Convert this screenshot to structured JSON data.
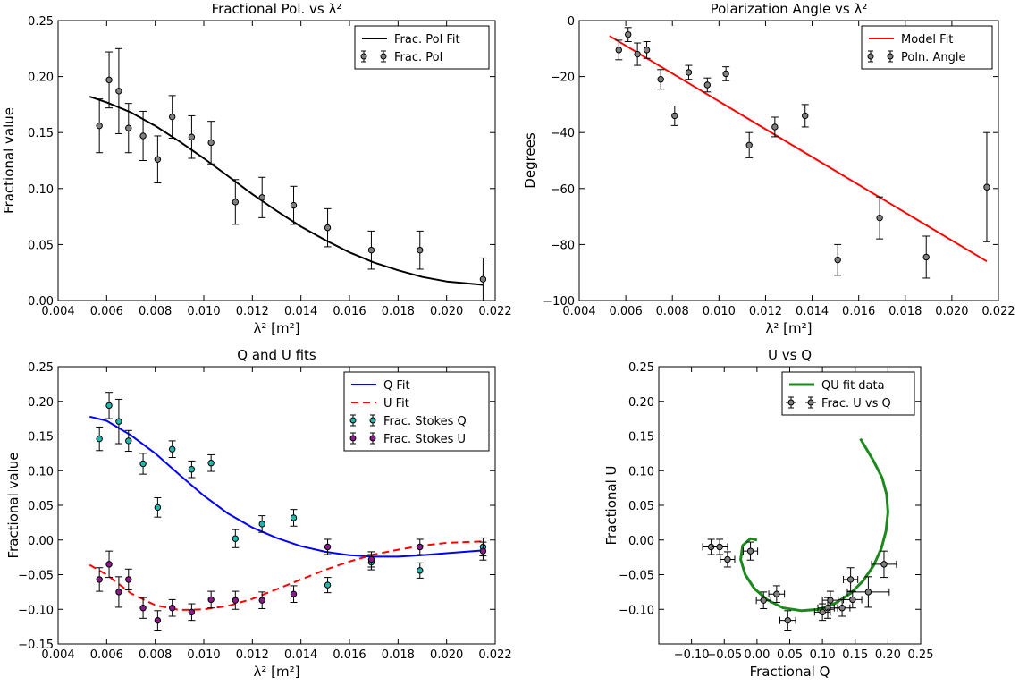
{
  "figure": {
    "panels": [
      {
        "title": "Fractional Pol. vs λ²",
        "xlabel": "λ² [m²]",
        "ylabel": "Fractional value",
        "legend_items": [
          "Frac. Pol Fit",
          "Frac. Pol"
        ]
      },
      {
        "title": "Polarization Angle vs λ²",
        "xlabel": "λ² [m²]",
        "ylabel": "Degrees",
        "legend_items": [
          "Model Fit",
          "Poln. Angle"
        ]
      },
      {
        "title": "Q and U fits",
        "xlabel": "λ² [m²]",
        "ylabel": "Fractional value",
        "legend_items": [
          "Q Fit",
          "U Fit",
          "Frac. Stokes Q",
          "Frac. Stokes U"
        ]
      },
      {
        "title": "U vs Q",
        "xlabel": "Fractional Q",
        "ylabel": "Fractional U",
        "legend_items": [
          "QU fit data",
          "Frac. U vs Q"
        ]
      }
    ]
  },
  "colors": {
    "frac_pol_fit": "#000000",
    "model_fit": "#ff0000",
    "q_fit": "#0000ff",
    "u_fit": "#ff0000",
    "stokes_q_marker": "#1fb8b0",
    "stokes_u_marker": "#8b1a8b",
    "data_marker": "#808080",
    "qu_fit": "#1a8a1a"
  },
  "chart_data": [
    {
      "type": "scatter",
      "title": "Fractional Pol. vs λ²",
      "xlabel": "λ² [m²]",
      "ylabel": "Fractional value",
      "xlim": [
        0.004,
        0.022
      ],
      "ylim": [
        0.0,
        0.25
      ],
      "xticks": [
        "0.004",
        "0.006",
        "0.008",
        "0.010",
        "0.012",
        "0.014",
        "0.016",
        "0.018",
        "0.020",
        "0.022"
      ],
      "yticks": [
        "0.00",
        "0.05",
        "0.10",
        "0.15",
        "0.20",
        "0.25"
      ],
      "legend": "top-right",
      "series": [
        {
          "name": "Frac. Pol Fit",
          "kind": "line",
          "x": [
            0.0053,
            0.006,
            0.007,
            0.008,
            0.009,
            0.01,
            0.011,
            0.012,
            0.013,
            0.014,
            0.015,
            0.016,
            0.017,
            0.018,
            0.019,
            0.02,
            0.0215
          ],
          "y": [
            0.182,
            0.177,
            0.168,
            0.156,
            0.142,
            0.127,
            0.111,
            0.095,
            0.08,
            0.066,
            0.054,
            0.043,
            0.034,
            0.027,
            0.021,
            0.017,
            0.014
          ]
        },
        {
          "name": "Frac. Pol",
          "kind": "errorbar",
          "x": [
            0.0057,
            0.0061,
            0.0065,
            0.0069,
            0.0075,
            0.0081,
            0.0087,
            0.0095,
            0.0103,
            0.0113,
            0.0124,
            0.0137,
            0.0151,
            0.0169,
            0.0189,
            0.0215
          ],
          "y": [
            0.156,
            0.197,
            0.187,
            0.154,
            0.147,
            0.126,
            0.164,
            0.146,
            0.141,
            0.088,
            0.092,
            0.085,
            0.065,
            0.045,
            0.045,
            0.019
          ],
          "yerr": [
            0.024,
            0.025,
            0.038,
            0.022,
            0.022,
            0.021,
            0.019,
            0.019,
            0.019,
            0.02,
            0.018,
            0.017,
            0.017,
            0.017,
            0.017,
            0.019
          ]
        }
      ]
    },
    {
      "type": "scatter",
      "title": "Polarization Angle vs λ²",
      "xlabel": "λ² [m²]",
      "ylabel": "Degrees",
      "xlim": [
        0.004,
        0.022
      ],
      "ylim": [
        -100,
        0
      ],
      "xticks": [
        "0.004",
        "0.006",
        "0.008",
        "0.010",
        "0.012",
        "0.014",
        "0.016",
        "0.018",
        "0.020",
        "0.022"
      ],
      "yticks": [
        "−100",
        "−80",
        "−60",
        "−40",
        "−20",
        "0"
      ],
      "legend": "top-right",
      "series": [
        {
          "name": "Model Fit",
          "kind": "line",
          "x": [
            0.0053,
            0.0215
          ],
          "y": [
            -5.5,
            -86
          ]
        },
        {
          "name": "Poln. Angle",
          "kind": "errorbar",
          "x": [
            0.0057,
            0.0061,
            0.0065,
            0.0069,
            0.0075,
            0.0081,
            0.0087,
            0.0095,
            0.0103,
            0.0113,
            0.0124,
            0.0137,
            0.0151,
            0.0169,
            0.0189,
            0.0215
          ],
          "y": [
            -10.5,
            -5,
            -12,
            -10.5,
            -21,
            -34,
            -18.5,
            -23,
            -19,
            -44.5,
            -38,
            -34,
            -85.5,
            -70.5,
            -84.5,
            -59.5
          ],
          "yerr": [
            3.5,
            2.5,
            4,
            3,
            3.5,
            3.5,
            2.5,
            2.5,
            2.5,
            4.5,
            3.5,
            4,
            5.5,
            7.5,
            7.5,
            19.5
          ]
        }
      ]
    },
    {
      "type": "scatter",
      "title": "Q and U fits",
      "xlabel": "λ² [m²]",
      "ylabel": "Fractional value",
      "xlim": [
        0.004,
        0.022
      ],
      "ylim": [
        -0.15,
        0.25
      ],
      "xticks": [
        "0.004",
        "0.006",
        "0.008",
        "0.010",
        "0.012",
        "0.014",
        "0.016",
        "0.018",
        "0.020",
        "0.022"
      ],
      "yticks": [
        "−0.15",
        "−0.10",
        "−0.05",
        "0.00",
        "0.05",
        "0.10",
        "0.15",
        "0.20",
        "0.25"
      ],
      "legend": "top-right",
      "series": [
        {
          "name": "Q Fit",
          "kind": "line",
          "x": [
            0.0053,
            0.006,
            0.007,
            0.008,
            0.009,
            0.01,
            0.011,
            0.012,
            0.013,
            0.014,
            0.015,
            0.016,
            0.017,
            0.018,
            0.019,
            0.02,
            0.0215
          ],
          "y": [
            0.178,
            0.172,
            0.151,
            0.125,
            0.094,
            0.064,
            0.038,
            0.018,
            0.003,
            -0.009,
            -0.017,
            -0.022,
            -0.024,
            -0.024,
            -0.022,
            -0.019,
            -0.015
          ]
        },
        {
          "name": "U Fit",
          "kind": "dashed-line",
          "x": [
            0.0053,
            0.006,
            0.007,
            0.008,
            0.009,
            0.01,
            0.011,
            0.012,
            0.013,
            0.014,
            0.015,
            0.016,
            0.017,
            0.018,
            0.019,
            0.02,
            0.0215
          ],
          "y": [
            -0.036,
            -0.05,
            -0.077,
            -0.094,
            -0.101,
            -0.1,
            -0.095,
            -0.085,
            -0.071,
            -0.057,
            -0.043,
            -0.031,
            -0.021,
            -0.014,
            -0.008,
            -0.004,
            -0.002
          ]
        },
        {
          "name": "Frac. Stokes Q",
          "kind": "errorbar",
          "x": [
            0.0057,
            0.0061,
            0.0065,
            0.0069,
            0.0075,
            0.0081,
            0.0087,
            0.0095,
            0.0103,
            0.0113,
            0.0124,
            0.0137,
            0.0151,
            0.0169,
            0.0189,
            0.0215
          ],
          "y": [
            0.146,
            0.194,
            0.171,
            0.143,
            0.11,
            0.047,
            0.131,
            0.102,
            0.111,
            0.002,
            0.023,
            0.032,
            -0.065,
            -0.032,
            -0.044,
            -0.01
          ],
          "yerr": [
            0.017,
            0.019,
            0.032,
            0.015,
            0.015,
            0.014,
            0.012,
            0.012,
            0.012,
            0.013,
            0.012,
            0.012,
            0.011,
            0.011,
            0.011,
            0.013
          ]
        },
        {
          "name": "Frac. Stokes U",
          "kind": "errorbar",
          "x": [
            0.0057,
            0.0061,
            0.0065,
            0.0069,
            0.0075,
            0.0081,
            0.0087,
            0.0095,
            0.0103,
            0.0113,
            0.0124,
            0.0137,
            0.0151,
            0.0169,
            0.0189,
            0.0215
          ],
          "y": [
            -0.057,
            -0.035,
            -0.075,
            -0.057,
            -0.098,
            -0.116,
            -0.098,
            -0.104,
            -0.086,
            -0.087,
            -0.087,
            -0.078,
            -0.01,
            -0.028,
            -0.01,
            -0.016
          ],
          "yerr": [
            0.017,
            0.019,
            0.022,
            0.015,
            0.015,
            0.014,
            0.012,
            0.012,
            0.012,
            0.013,
            0.012,
            0.012,
            0.011,
            0.011,
            0.011,
            0.013
          ]
        }
      ]
    },
    {
      "type": "scatter",
      "title": "U vs Q",
      "xlabel": "Fractional Q",
      "ylabel": "Fractional U",
      "xlim": [
        -0.15,
        0.25
      ],
      "ylim": [
        -0.15,
        0.25
      ],
      "xticks": [
        "−0.10",
        "−0.05",
        "0.00",
        "0.05",
        "0.10",
        "0.15",
        "0.20",
        "0.25"
      ],
      "yticks": [
        "−0.10",
        "−0.05",
        "0.00",
        "0.05",
        "0.10",
        "0.15",
        "0.20",
        "0.25"
      ],
      "xtick_values": [
        -0.1,
        -0.05,
        0.0,
        0.05,
        0.1,
        0.15,
        0.2,
        0.25
      ],
      "ytick_values": [
        -0.1,
        -0.05,
        0.0,
        0.05,
        0.1,
        0.15,
        0.2,
        0.25
      ],
      "legend": "top-right",
      "series": [
        {
          "name": "QU fit data",
          "kind": "line",
          "x": [
            0.0,
            -0.01,
            -0.022,
            -0.025,
            -0.018,
            -0.004,
            0.015,
            0.04,
            0.068,
            0.095,
            0.12,
            0.143,
            0.162,
            0.178,
            0.19,
            0.197,
            0.2,
            0.198,
            0.191,
            0.178,
            0.158
          ],
          "y": [
            0.0,
            0.002,
            -0.008,
            -0.028,
            -0.05,
            -0.07,
            -0.086,
            -0.098,
            -0.102,
            -0.1,
            -0.091,
            -0.077,
            -0.059,
            -0.037,
            -0.012,
            0.013,
            0.04,
            0.066,
            0.09,
            0.114,
            0.146
          ]
        },
        {
          "name": "Frac. U vs Q",
          "kind": "errorbar-xy",
          "x": [
            -0.07,
            -0.057,
            -0.045,
            -0.01,
            0.01,
            0.03,
            0.047,
            0.1,
            0.108,
            0.13,
            0.143,
            0.146,
            0.17,
            0.194,
            0.112
          ],
          "y": [
            -0.01,
            -0.01,
            -0.028,
            -0.016,
            -0.087,
            -0.078,
            -0.116,
            -0.104,
            -0.098,
            -0.098,
            -0.057,
            -0.086,
            -0.075,
            -0.035,
            -0.087
          ],
          "xerr": [
            0.013,
            0.012,
            0.011,
            0.011,
            0.011,
            0.012,
            0.012,
            0.012,
            0.015,
            0.012,
            0.011,
            0.014,
            0.032,
            0.019,
            0.012
          ],
          "yerr": [
            0.011,
            0.011,
            0.011,
            0.013,
            0.012,
            0.012,
            0.014,
            0.012,
            0.015,
            0.012,
            0.017,
            0.012,
            0.022,
            0.019,
            0.013
          ]
        }
      ]
    }
  ]
}
